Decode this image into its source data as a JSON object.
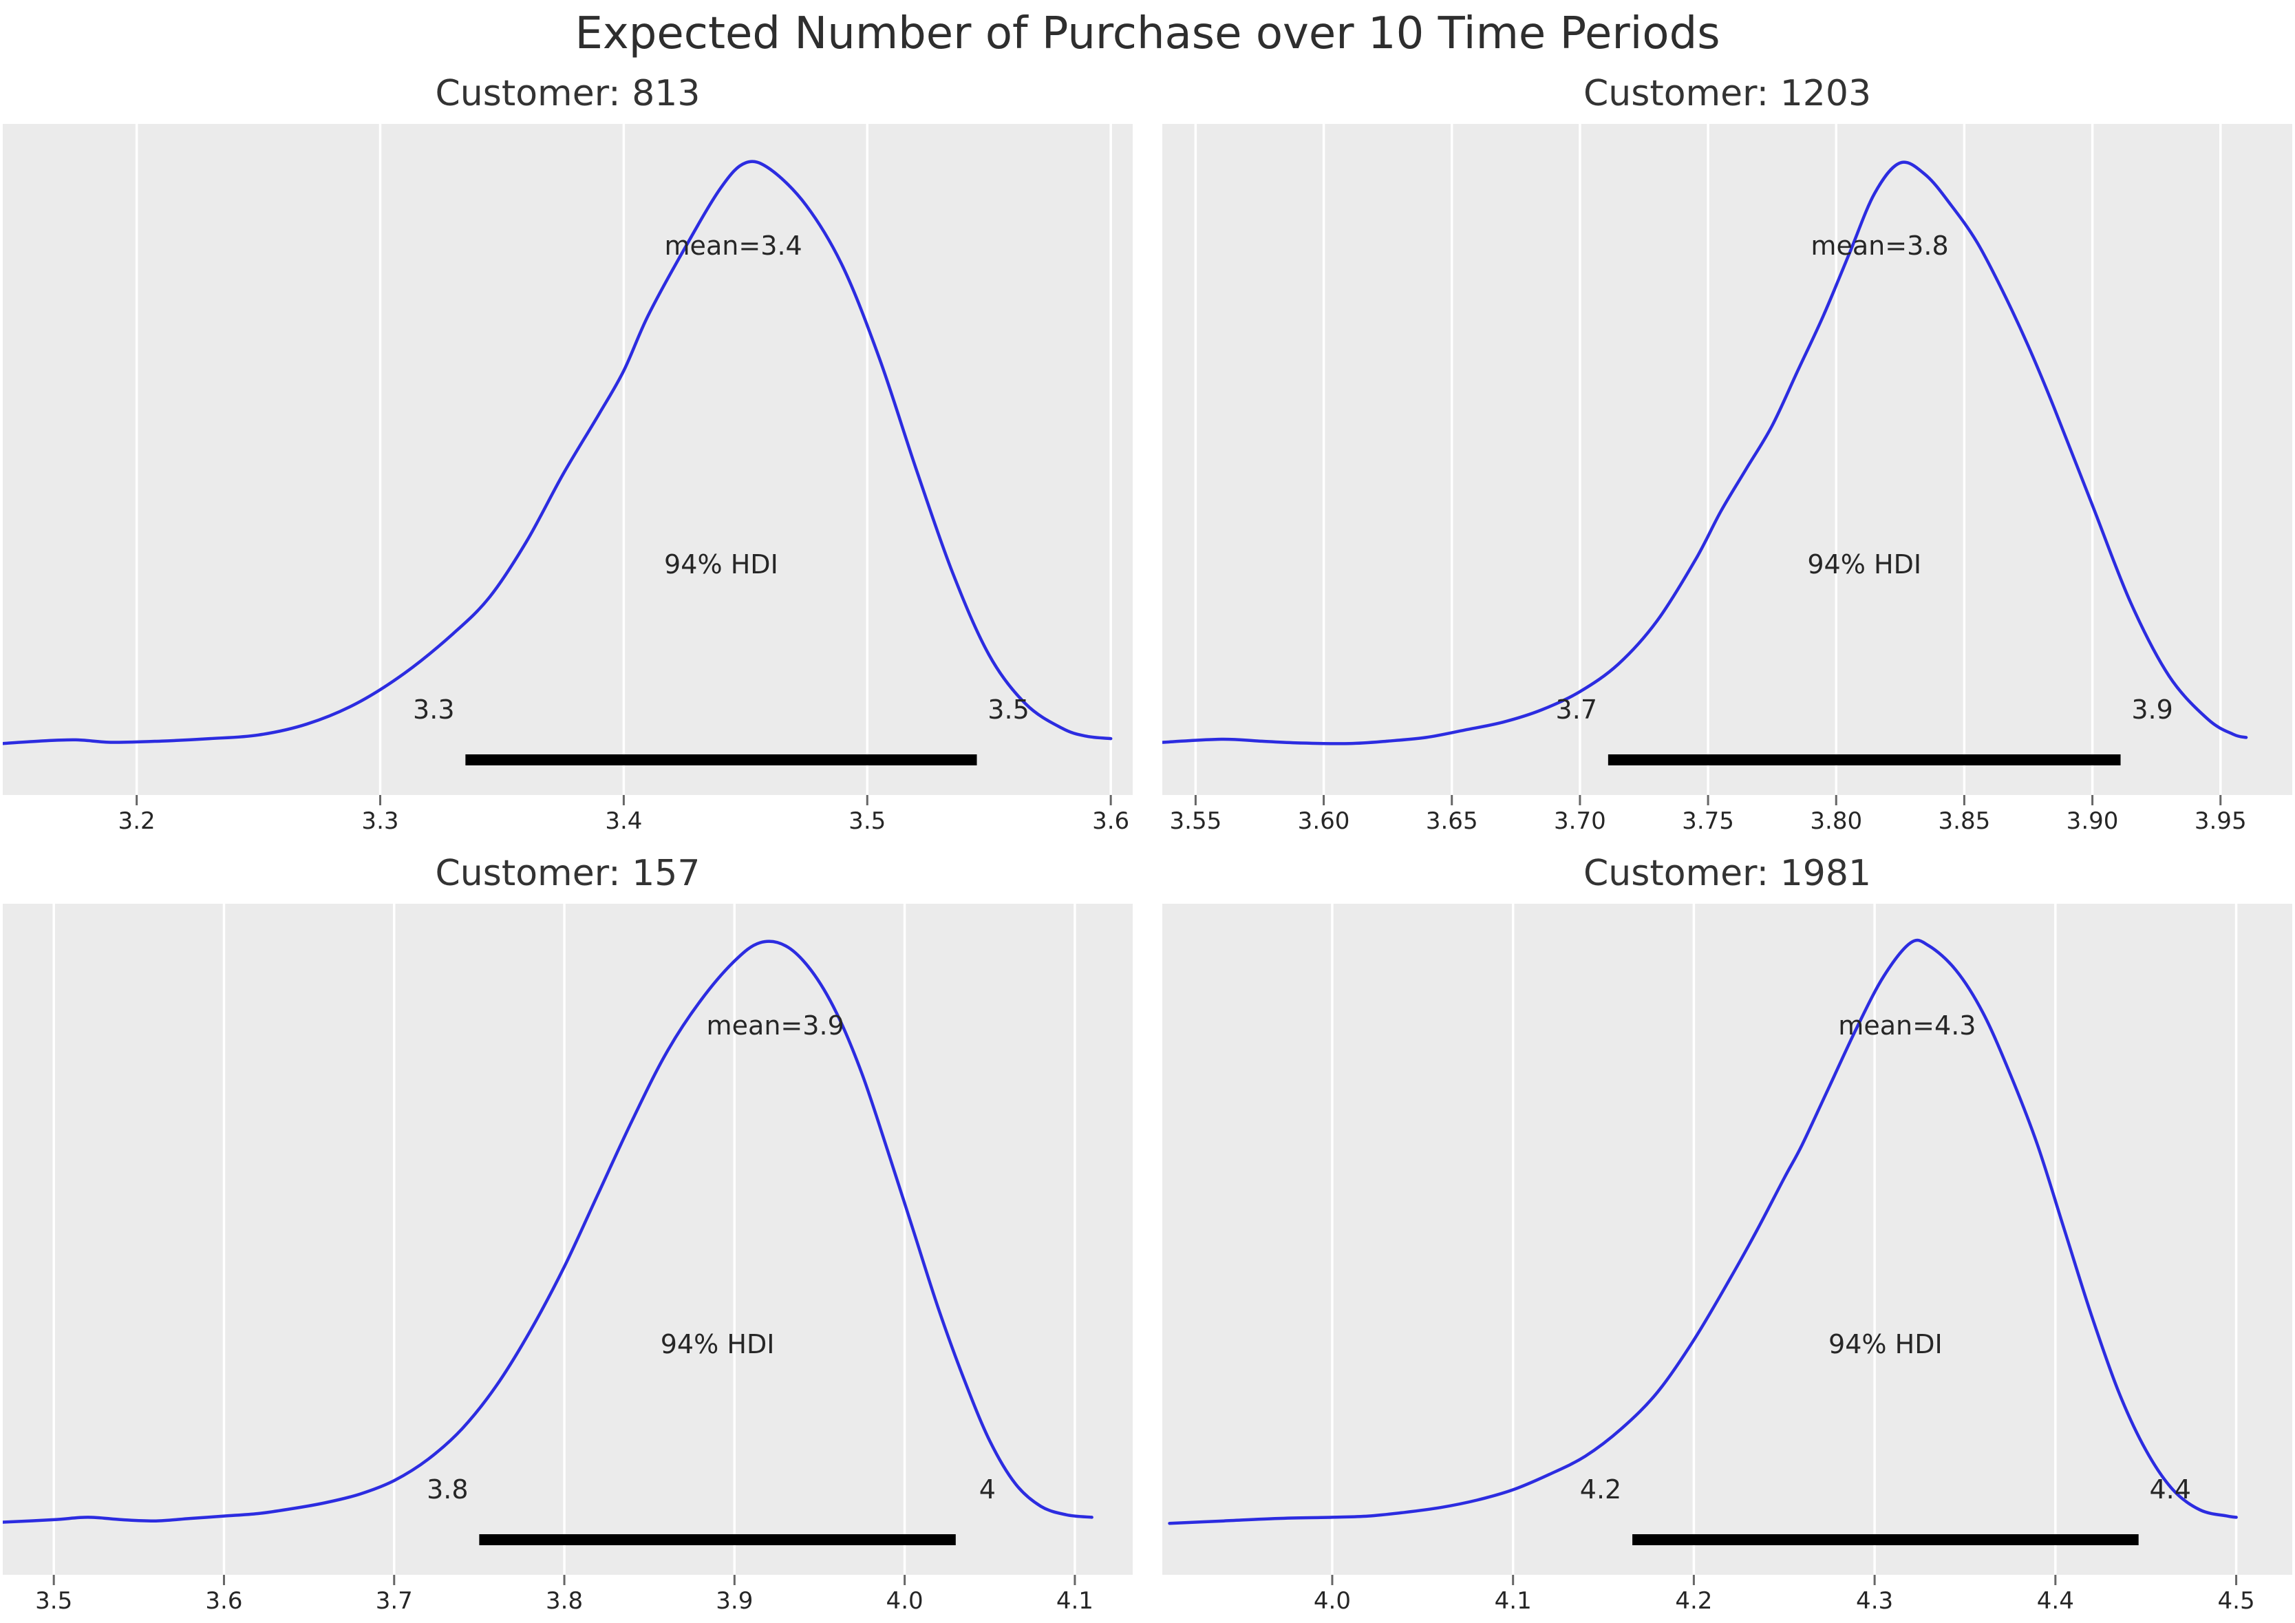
{
  "page": {
    "title": "Expected Number of Purchase over 10 Time Periods"
  },
  "style": {
    "plot_bg": "#ebebeb",
    "grid_color": "#ffffff",
    "curve_color": "#2c2ce0",
    "hdi_bar_color": "#000000",
    "text_color": "#262626",
    "tick_mark_color": "#666666"
  },
  "chart_data": [
    {
      "type": "kde-posterior",
      "title": "Customer: 813",
      "mean_label": "mean=3.4",
      "mean_x": 3.445,
      "hdi_label": "94% HDI",
      "hdi": {
        "lower": 3.335,
        "upper": 3.545,
        "lower_label": "3.3",
        "upper_label": "3.5"
      },
      "xlim": [
        3.145,
        3.609
      ],
      "xticks": {
        "values": [
          3.2,
          3.3,
          3.4,
          3.5,
          3.6
        ],
        "labels": [
          "3.2",
          "3.3",
          "3.4",
          "3.5",
          "3.6"
        ]
      },
      "curve": [
        [
          3.145,
          0.02
        ],
        [
          3.16,
          0.024
        ],
        [
          3.175,
          0.026
        ],
        [
          3.19,
          0.022
        ],
        [
          3.21,
          0.024
        ],
        [
          3.23,
          0.028
        ],
        [
          3.25,
          0.034
        ],
        [
          3.27,
          0.052
        ],
        [
          3.29,
          0.085
        ],
        [
          3.31,
          0.135
        ],
        [
          3.33,
          0.2
        ],
        [
          3.345,
          0.26
        ],
        [
          3.36,
          0.35
        ],
        [
          3.375,
          0.46
        ],
        [
          3.39,
          0.56
        ],
        [
          3.4,
          0.63
        ],
        [
          3.41,
          0.72
        ],
        [
          3.425,
          0.83
        ],
        [
          3.44,
          0.93
        ],
        [
          3.45,
          0.97
        ],
        [
          3.46,
          0.96
        ],
        [
          3.475,
          0.9
        ],
        [
          3.49,
          0.8
        ],
        [
          3.505,
          0.65
        ],
        [
          3.52,
          0.47
        ],
        [
          3.535,
          0.3
        ],
        [
          3.55,
          0.165
        ],
        [
          3.565,
          0.085
        ],
        [
          3.58,
          0.045
        ],
        [
          3.59,
          0.032
        ],
        [
          3.6,
          0.028
        ]
      ]
    },
    {
      "type": "kde-posterior",
      "title": "Customer: 1203",
      "mean_label": "mean=3.8",
      "mean_x": 3.817,
      "hdi_label": "94% HDI",
      "hdi": {
        "lower": 3.711,
        "upper": 3.911,
        "lower_label": "3.7",
        "upper_label": "3.9"
      },
      "xlim": [
        3.537,
        3.978
      ],
      "xticks": {
        "values": [
          3.55,
          3.6,
          3.65,
          3.7,
          3.75,
          3.8,
          3.85,
          3.9,
          3.95
        ],
        "labels": [
          "3.55",
          "3.60",
          "3.65",
          "3.70",
          "3.75",
          "3.80",
          "3.85",
          "3.90",
          "3.95"
        ]
      },
      "curve": [
        [
          3.537,
          0.022
        ],
        [
          3.56,
          0.027
        ],
        [
          3.575,
          0.024
        ],
        [
          3.59,
          0.021
        ],
        [
          3.61,
          0.02
        ],
        [
          3.625,
          0.024
        ],
        [
          3.64,
          0.03
        ],
        [
          3.655,
          0.042
        ],
        [
          3.67,
          0.055
        ],
        [
          3.685,
          0.075
        ],
        [
          3.7,
          0.105
        ],
        [
          3.715,
          0.15
        ],
        [
          3.73,
          0.22
        ],
        [
          3.745,
          0.32
        ],
        [
          3.755,
          0.4
        ],
        [
          3.765,
          0.47
        ],
        [
          3.775,
          0.54
        ],
        [
          3.785,
          0.63
        ],
        [
          3.795,
          0.72
        ],
        [
          3.805,
          0.82
        ],
        [
          3.815,
          0.92
        ],
        [
          3.825,
          0.97
        ],
        [
          3.835,
          0.95
        ],
        [
          3.845,
          0.9
        ],
        [
          3.855,
          0.84
        ],
        [
          3.865,
          0.76
        ],
        [
          3.875,
          0.67
        ],
        [
          3.885,
          0.57
        ],
        [
          3.9,
          0.41
        ],
        [
          3.915,
          0.25
        ],
        [
          3.93,
          0.13
        ],
        [
          3.945,
          0.06
        ],
        [
          3.955,
          0.035
        ],
        [
          3.96,
          0.03
        ]
      ]
    },
    {
      "type": "kde-posterior",
      "title": "Customer: 157",
      "mean_label": "mean=3.9",
      "mean_x": 3.924,
      "hdi_label": "94% HDI",
      "hdi": {
        "lower": 3.75,
        "upper": 4.03,
        "lower_label": "3.8",
        "upper_label": "4"
      },
      "xlim": [
        3.47,
        4.134
      ],
      "xticks": {
        "values": [
          3.5,
          3.6,
          3.7,
          3.8,
          3.9,
          4.0,
          4.1
        ],
        "labels": [
          "3.5",
          "3.6",
          "3.7",
          "3.8",
          "3.9",
          "4.0",
          "4.1"
        ]
      },
      "curve": [
        [
          3.47,
          0.022
        ],
        [
          3.5,
          0.026
        ],
        [
          3.52,
          0.03
        ],
        [
          3.54,
          0.026
        ],
        [
          3.56,
          0.024
        ],
        [
          3.58,
          0.028
        ],
        [
          3.6,
          0.032
        ],
        [
          3.62,
          0.036
        ],
        [
          3.64,
          0.044
        ],
        [
          3.66,
          0.054
        ],
        [
          3.68,
          0.068
        ],
        [
          3.7,
          0.09
        ],
        [
          3.72,
          0.125
        ],
        [
          3.74,
          0.175
        ],
        [
          3.76,
          0.245
        ],
        [
          3.78,
          0.335
        ],
        [
          3.8,
          0.44
        ],
        [
          3.82,
          0.56
        ],
        [
          3.84,
          0.68
        ],
        [
          3.86,
          0.79
        ],
        [
          3.88,
          0.875
        ],
        [
          3.9,
          0.94
        ],
        [
          3.915,
          0.97
        ],
        [
          3.93,
          0.965
        ],
        [
          3.945,
          0.925
        ],
        [
          3.96,
          0.855
        ],
        [
          3.975,
          0.755
        ],
        [
          3.99,
          0.63
        ],
        [
          4.005,
          0.5
        ],
        [
          4.02,
          0.37
        ],
        [
          4.035,
          0.255
        ],
        [
          4.05,
          0.155
        ],
        [
          4.065,
          0.085
        ],
        [
          4.08,
          0.048
        ],
        [
          4.095,
          0.034
        ],
        [
          4.11,
          0.03
        ]
      ]
    },
    {
      "type": "kde-posterior",
      "title": "Customer: 1981",
      "mean_label": "mean=4.3",
      "mean_x": 4.318,
      "hdi_label": "94% HDI",
      "hdi": {
        "lower": 4.166,
        "upper": 4.446,
        "lower_label": "4.2",
        "upper_label": "4.4"
      },
      "xlim": [
        3.906,
        4.531
      ],
      "xticks": {
        "values": [
          4.0,
          4.1,
          4.2,
          4.3,
          4.4,
          4.5
        ],
        "labels": [
          "4.0",
          "4.1",
          "4.2",
          "4.3",
          "4.4",
          "4.5"
        ]
      },
      "curve": [
        [
          3.91,
          0.02
        ],
        [
          3.94,
          0.024
        ],
        [
          3.97,
          0.028
        ],
        [
          4.0,
          0.03
        ],
        [
          4.02,
          0.032
        ],
        [
          4.04,
          0.038
        ],
        [
          4.06,
          0.046
        ],
        [
          4.08,
          0.058
        ],
        [
          4.1,
          0.075
        ],
        [
          4.12,
          0.1
        ],
        [
          4.14,
          0.13
        ],
        [
          4.16,
          0.175
        ],
        [
          4.18,
          0.235
        ],
        [
          4.2,
          0.32
        ],
        [
          4.22,
          0.42
        ],
        [
          4.235,
          0.5
        ],
        [
          4.25,
          0.585
        ],
        [
          4.26,
          0.64
        ],
        [
          4.275,
          0.735
        ],
        [
          4.29,
          0.83
        ],
        [
          4.305,
          0.915
        ],
        [
          4.32,
          0.97
        ],
        [
          4.33,
          0.965
        ],
        [
          4.345,
          0.925
        ],
        [
          4.36,
          0.855
        ],
        [
          4.375,
          0.755
        ],
        [
          4.39,
          0.64
        ],
        [
          4.405,
          0.5
        ],
        [
          4.42,
          0.36
        ],
        [
          4.435,
          0.235
        ],
        [
          4.45,
          0.14
        ],
        [
          4.465,
          0.075
        ],
        [
          4.48,
          0.042
        ],
        [
          4.495,
          0.032
        ],
        [
          4.5,
          0.03
        ]
      ]
    }
  ]
}
